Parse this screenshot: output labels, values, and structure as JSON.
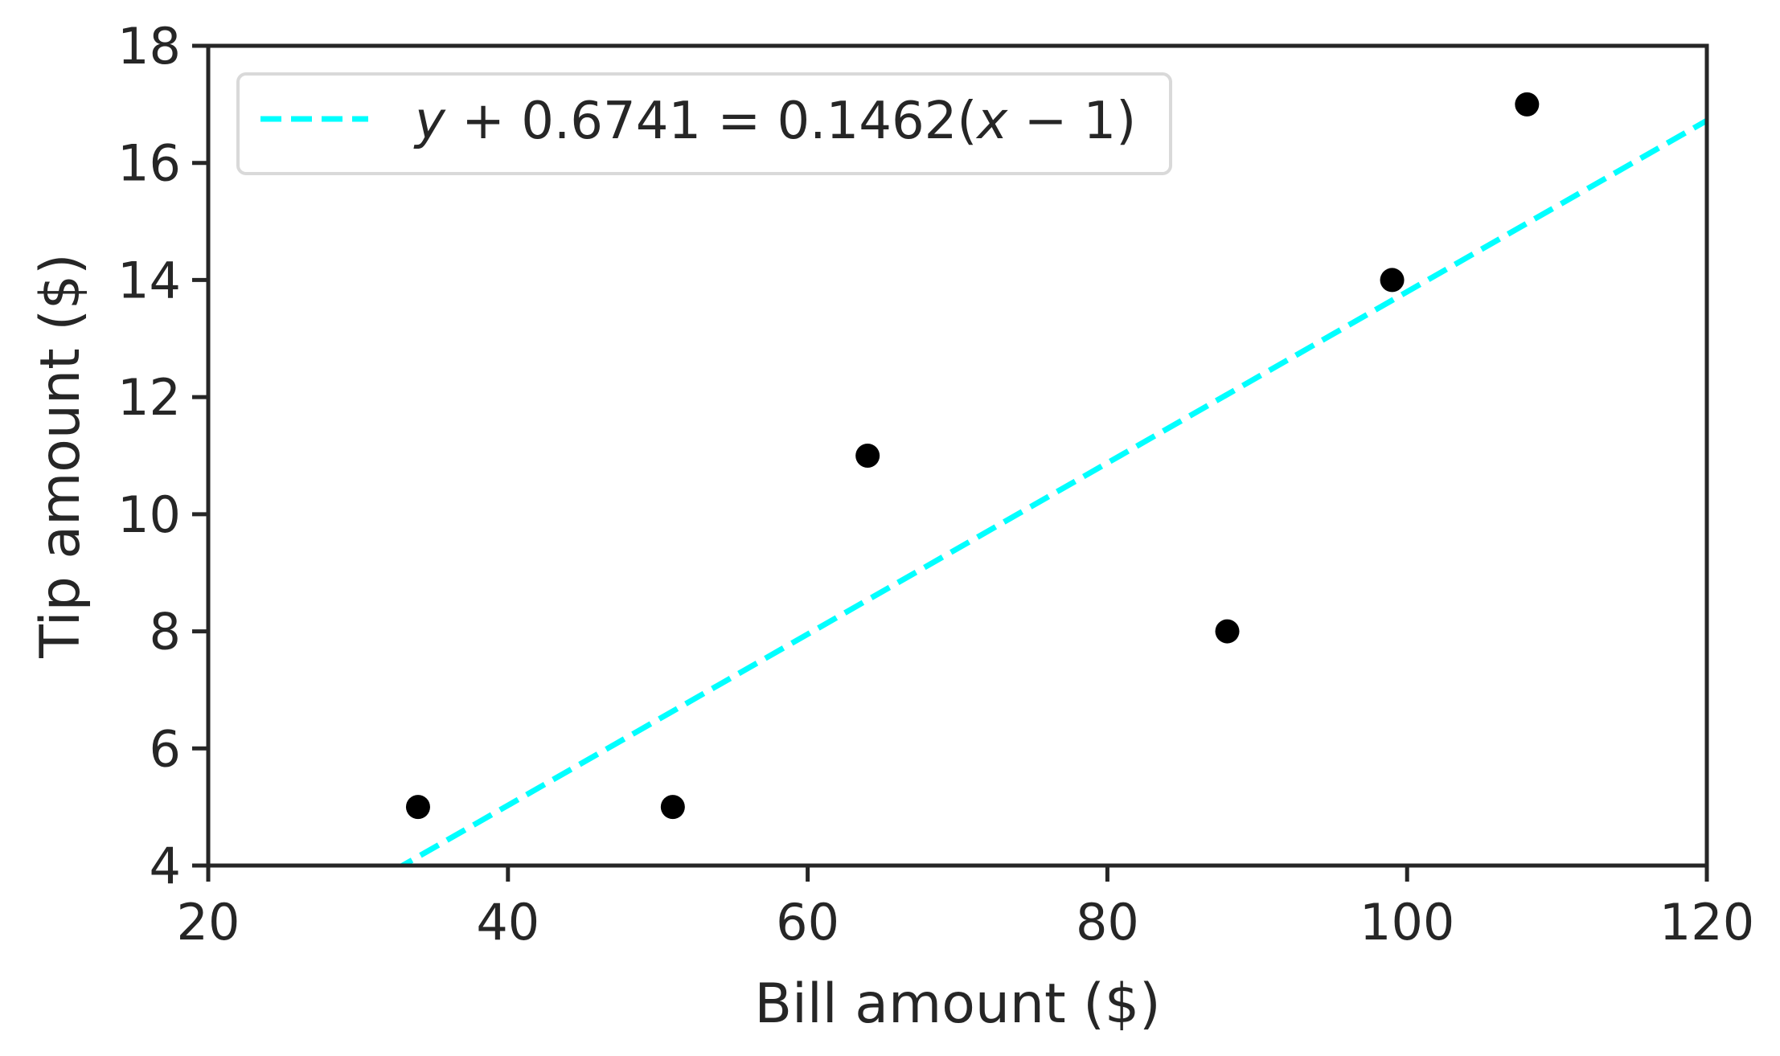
{
  "chart_data": {
    "type": "scatter",
    "title": "",
    "xlabel": "Bill amount ($)",
    "ylabel": "Tip amount ($)",
    "xlim": [
      20,
      120
    ],
    "ylim": [
      4,
      18
    ],
    "xticks": [
      "20",
      "40",
      "60",
      "80",
      "100",
      "120"
    ],
    "yticks": [
      "4",
      "6",
      "8",
      "10",
      "12",
      "14",
      "16",
      "18"
    ],
    "grid": false,
    "legend_position": "top-left",
    "points": {
      "x": [
        34,
        51,
        64,
        88,
        99,
        108
      ],
      "y": [
        5,
        5,
        11,
        8,
        14,
        17
      ],
      "color": "#000000"
    },
    "fit_line": {
      "legend": {
        "y": "y",
        "plus": " + 0.6741 = 0.1462(",
        "x": "x",
        "minus": " − 1)"
      },
      "slope": 0.1462,
      "intercept": -0.8203,
      "style": "dashed",
      "color": "#00FFFF"
    }
  }
}
